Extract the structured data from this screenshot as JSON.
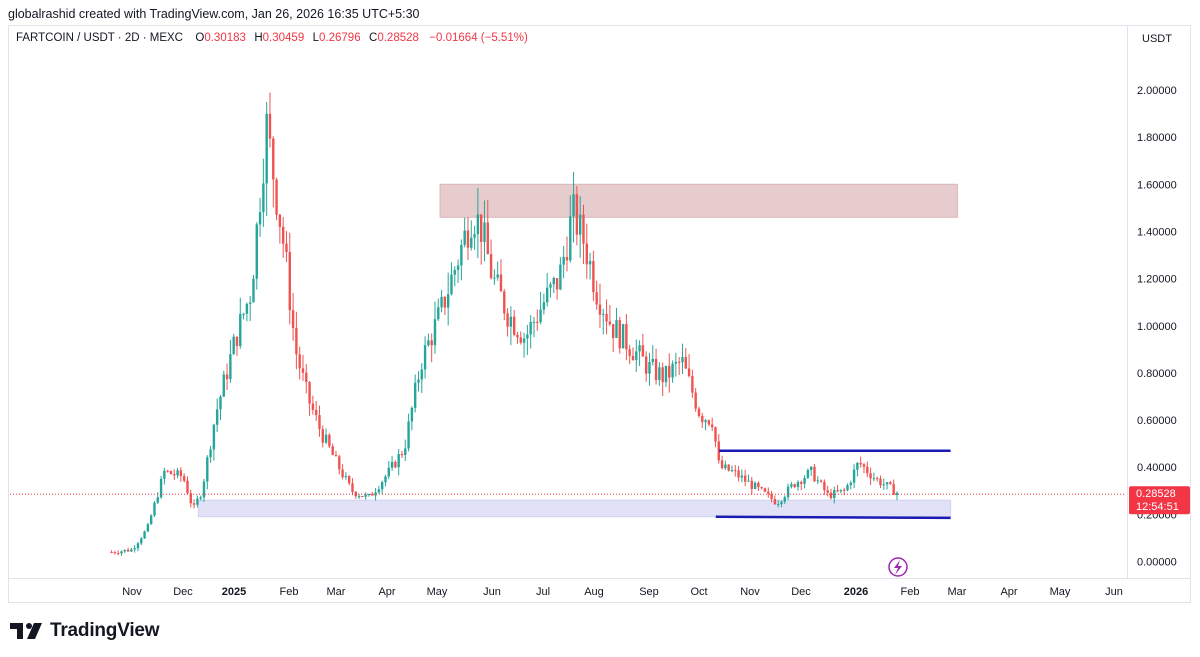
{
  "attribution": "globalrashid created with TradingView.com, Jan 26, 2026 16:35 UTC+5:30",
  "legend": {
    "symbol": "FARTCOIN / USDT · 2D · MEXC",
    "open_label": "O",
    "open": "0.30183",
    "high_label": "H",
    "high": "0.30459",
    "low_label": "L",
    "low": "0.26796",
    "close_label": "C",
    "close": "0.28528",
    "change": "−0.01664 (−5.51%)"
  },
  "currency": "USDT",
  "price_badge": {
    "price": "0.28528",
    "countdown": "12:54:51"
  },
  "brand": {
    "name": "TradingView",
    "icon": "tradingview-logo-icon"
  },
  "colors": {
    "up": "#26a69a",
    "down": "#ef5350",
    "resistance_zone": "#e3c4c6",
    "support_zone": "#dcdcf7",
    "channel": "#1b1bb3",
    "price_line": "#f23645"
  },
  "chart_data": {
    "type": "candlestick",
    "ylim": [
      -0.1,
      2.1
    ],
    "y_ticks": [
      "2.00000",
      "1.80000",
      "1.60000",
      "1.40000",
      "1.20000",
      "1.00000",
      "0.80000",
      "0.60000",
      "0.40000",
      "0.20000",
      "0.00000"
    ],
    "x_ticks": [
      "Nov",
      "Dec",
      "2025",
      "Feb",
      "Mar",
      "Apr",
      "May",
      "Jun",
      "Jul",
      "Aug",
      "Sep",
      "Oct",
      "Nov",
      "Dec",
      "2026",
      "Feb",
      "Mar",
      "Apr",
      "May",
      "Jun"
    ],
    "series": [
      {
        "date": "2024-10-20",
        "value": 0.04
      },
      {
        "date": "2024-11-01",
        "value": 0.05
      },
      {
        "date": "2024-11-10",
        "value": 0.14
      },
      {
        "date": "2024-11-20",
        "value": 0.38
      },
      {
        "date": "2024-12-01",
        "value": 0.36
      },
      {
        "date": "2024-12-07",
        "value": 0.22
      },
      {
        "date": "2024-12-12",
        "value": 0.3
      },
      {
        "date": "2024-12-20",
        "value": 0.62
      },
      {
        "date": "2025-01-01",
        "value": 0.95
      },
      {
        "date": "2025-01-10",
        "value": 1.15
      },
      {
        "date": "2025-01-19",
        "value": 1.85
      },
      {
        "date": "2025-01-24",
        "value": 1.6
      },
      {
        "date": "2025-01-30",
        "value": 1.3
      },
      {
        "date": "2025-02-05",
        "value": 0.9
      },
      {
        "date": "2025-02-12",
        "value": 0.7
      },
      {
        "date": "2025-02-20",
        "value": 0.55
      },
      {
        "date": "2025-03-01",
        "value": 0.42
      },
      {
        "date": "2025-03-10",
        "value": 0.3
      },
      {
        "date": "2025-03-20",
        "value": 0.27
      },
      {
        "date": "2025-04-01",
        "value": 0.38
      },
      {
        "date": "2025-04-10",
        "value": 0.48
      },
      {
        "date": "2025-04-20",
        "value": 0.85
      },
      {
        "date": "2025-05-01",
        "value": 1.05
      },
      {
        "date": "2025-05-10",
        "value": 1.25
      },
      {
        "date": "2025-05-20",
        "value": 1.48
      },
      {
        "date": "2025-05-25",
        "value": 1.42
      },
      {
        "date": "2025-06-01",
        "value": 1.2
      },
      {
        "date": "2025-06-10",
        "value": 1.05
      },
      {
        "date": "2025-06-20",
        "value": 0.95
      },
      {
        "date": "2025-07-01",
        "value": 1.1
      },
      {
        "date": "2025-07-10",
        "value": 1.2
      },
      {
        "date": "2025-07-18",
        "value": 1.48
      },
      {
        "date": "2025-07-25",
        "value": 1.35
      },
      {
        "date": "2025-08-01",
        "value": 1.15
      },
      {
        "date": "2025-08-10",
        "value": 1.0
      },
      {
        "date": "2025-08-20",
        "value": 0.92
      },
      {
        "date": "2025-09-01",
        "value": 0.82
      },
      {
        "date": "2025-09-10",
        "value": 0.78
      },
      {
        "date": "2025-09-20",
        "value": 0.85
      },
      {
        "date": "2025-10-01",
        "value": 0.62
      },
      {
        "date": "2025-10-08",
        "value": 0.6
      },
      {
        "date": "2025-10-12",
        "value": 0.4
      },
      {
        "date": "2025-10-20",
        "value": 0.38
      },
      {
        "date": "2025-11-01",
        "value": 0.32
      },
      {
        "date": "2025-11-15",
        "value": 0.25
      },
      {
        "date": "2025-11-25",
        "value": 0.33
      },
      {
        "date": "2025-12-05",
        "value": 0.38
      },
      {
        "date": "2025-12-15",
        "value": 0.28
      },
      {
        "date": "2025-12-25",
        "value": 0.3
      },
      {
        "date": "2026-01-02",
        "value": 0.42
      },
      {
        "date": "2026-01-12",
        "value": 0.35
      },
      {
        "date": "2026-01-26",
        "value": 0.285
      }
    ],
    "zones": [
      {
        "name": "resistance",
        "from": "2025-05-01",
        "to": "2026-03-01",
        "low": 1.46,
        "high": 1.6
      },
      {
        "name": "support",
        "from": "2024-12-10",
        "to": "2026-02-25",
        "low": 0.19,
        "high": 0.26
      }
    ],
    "channel": {
      "upper": {
        "from": "2025-10-12",
        "to": "2026-02-25",
        "value": 0.47
      },
      "lower": {
        "from": "2025-10-10",
        "to": "2026-02-25",
        "value": 0.19
      }
    },
    "last_price": 0.28528
  }
}
